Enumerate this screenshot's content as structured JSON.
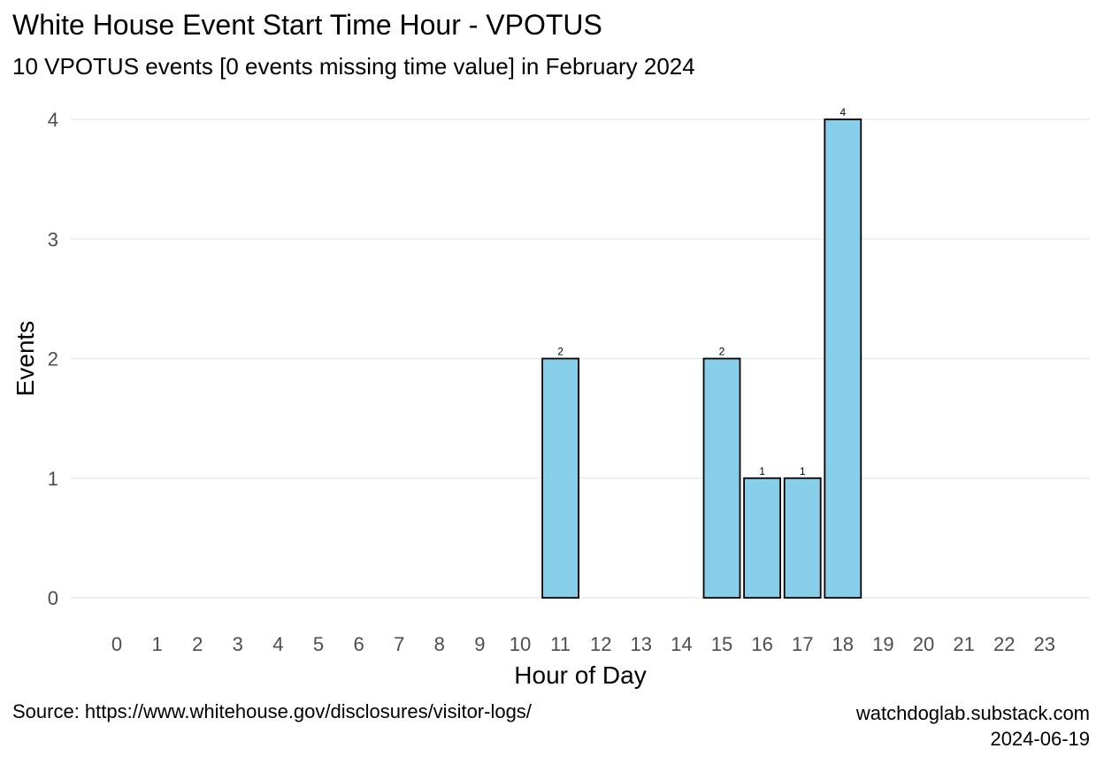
{
  "title": "White House Event Start Time Hour - VPOTUS",
  "subtitle": "10 VPOTUS events [0 events missing time value] in February 2024",
  "caption": {
    "source": "Source: https://www.whitehouse.gov/disclosures/visitor-logs/",
    "site": "watchdoglab.substack.com",
    "date": "2024-06-19"
  },
  "chart_data": {
    "type": "bar",
    "xlabel": "Hour of Day",
    "ylabel": "Events",
    "categories": [
      "0",
      "1",
      "2",
      "3",
      "4",
      "5",
      "6",
      "7",
      "8",
      "9",
      "10",
      "11",
      "12",
      "13",
      "14",
      "15",
      "16",
      "17",
      "18",
      "19",
      "20",
      "21",
      "22",
      "23"
    ],
    "values": [
      0,
      0,
      0,
      0,
      0,
      0,
      0,
      0,
      0,
      0,
      0,
      2,
      0,
      0,
      0,
      2,
      1,
      1,
      4,
      0,
      0,
      0,
      0,
      0
    ],
    "yticks": [
      0,
      1,
      2,
      3,
      4
    ],
    "ylim": [
      0,
      4
    ],
    "grid": true,
    "legend": "none",
    "bar_color": "#87CEEB",
    "bar_outline": "#000000",
    "gridline_color": "#ebebeb"
  }
}
